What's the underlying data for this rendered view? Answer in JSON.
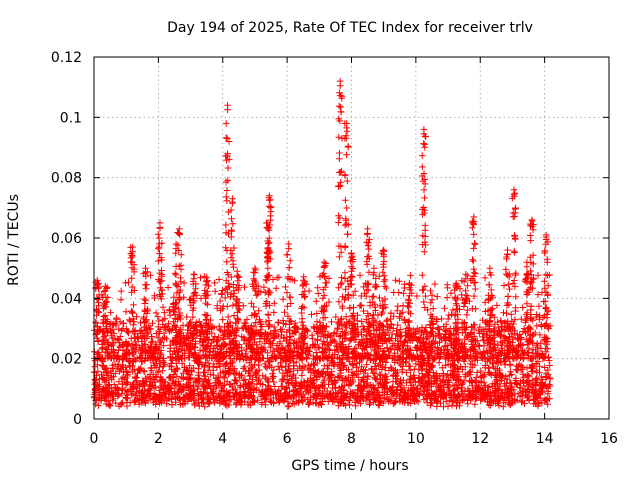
{
  "chart_data": {
    "type": "scatter",
    "title": "Day 194 of 2025, Rate Of TEC Index for receiver trlv",
    "xlabel": "GPS time / hours",
    "ylabel": "ROTI / TECUs",
    "xlim": [
      0,
      16
    ],
    "ylim": [
      0,
      0.12
    ],
    "xticks": [
      0,
      2,
      4,
      6,
      8,
      10,
      12,
      14,
      16
    ],
    "xtick_labels": [
      "0",
      "2",
      "4",
      "6",
      "8",
      "10",
      "12",
      "14",
      "16"
    ],
    "yticks": [
      0,
      0.02,
      0.04,
      0.06,
      0.08,
      0.1,
      0.12
    ],
    "ytick_labels": [
      "0",
      "0.02",
      "0.04",
      "0.06",
      "0.08",
      "0.1",
      "0.12"
    ],
    "grid": true,
    "marker": "+",
    "color": "#ff0000",
    "x_range_of_data": [
      0.0,
      14.2
    ],
    "background_band": [
      0.004,
      0.03
    ],
    "peaks": [
      {
        "x": 0.1,
        "y": 0.046
      },
      {
        "x": 0.35,
        "y": 0.044
      },
      {
        "x": 1.2,
        "y": 0.057
      },
      {
        "x": 1.6,
        "y": 0.05
      },
      {
        "x": 2.05,
        "y": 0.065
      },
      {
        "x": 2.55,
        "y": 0.058
      },
      {
        "x": 2.65,
        "y": 0.063
      },
      {
        "x": 3.1,
        "y": 0.048
      },
      {
        "x": 3.5,
        "y": 0.047
      },
      {
        "x": 4.15,
        "y": 0.104
      },
      {
        "x": 4.3,
        "y": 0.073
      },
      {
        "x": 4.45,
        "y": 0.049
      },
      {
        "x": 5.0,
        "y": 0.05
      },
      {
        "x": 5.45,
        "y": 0.074
      },
      {
        "x": 5.4,
        "y": 0.065
      },
      {
        "x": 6.05,
        "y": 0.058
      },
      {
        "x": 6.5,
        "y": 0.046
      },
      {
        "x": 7.15,
        "y": 0.052
      },
      {
        "x": 7.65,
        "y": 0.112
      },
      {
        "x": 7.85,
        "y": 0.098
      },
      {
        "x": 8.0,
        "y": 0.055
      },
      {
        "x": 8.5,
        "y": 0.063
      },
      {
        "x": 8.7,
        "y": 0.05
      },
      {
        "x": 9.0,
        "y": 0.056
      },
      {
        "x": 9.8,
        "y": 0.045
      },
      {
        "x": 10.25,
        "y": 0.096
      },
      {
        "x": 10.5,
        "y": 0.041
      },
      {
        "x": 11.25,
        "y": 0.045
      },
      {
        "x": 11.55,
        "y": 0.048
      },
      {
        "x": 11.8,
        "y": 0.067
      },
      {
        "x": 12.3,
        "y": 0.05
      },
      {
        "x": 12.85,
        "y": 0.056
      },
      {
        "x": 13.05,
        "y": 0.076
      },
      {
        "x": 13.45,
        "y": 0.052
      },
      {
        "x": 13.6,
        "y": 0.066
      },
      {
        "x": 14.05,
        "y": 0.061
      }
    ]
  }
}
